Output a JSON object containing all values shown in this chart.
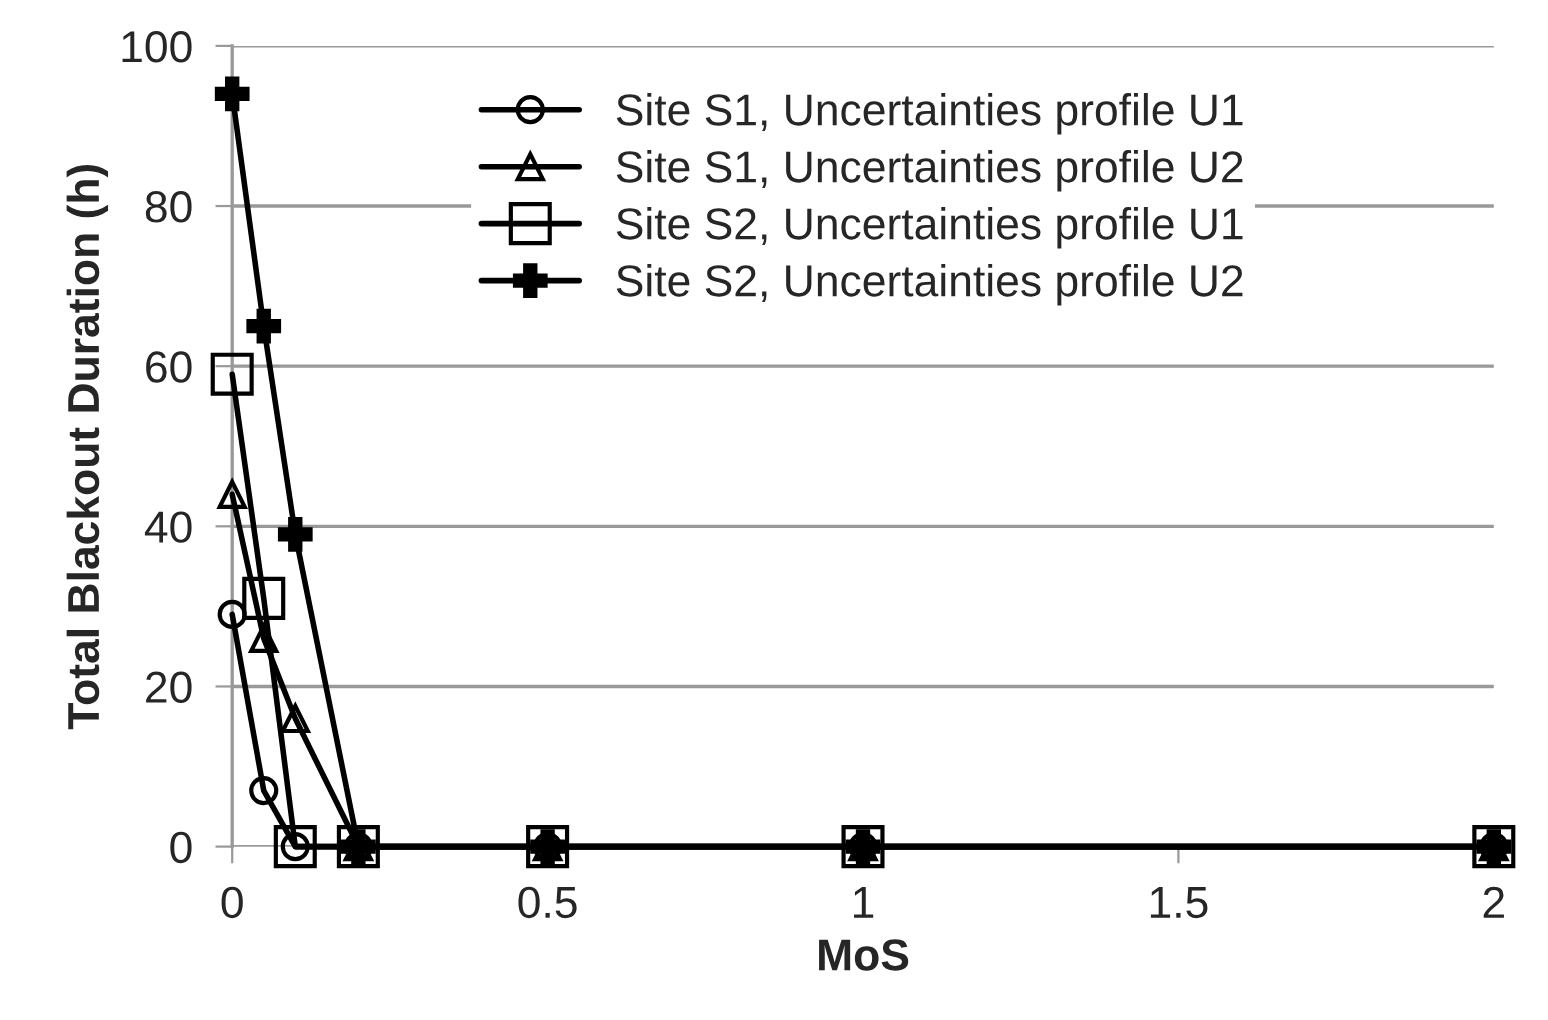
{
  "chart_data": {
    "type": "line",
    "xlabel": "MoS",
    "ylabel": "Total Blackout Duration (h)",
    "x": [
      0,
      0.05,
      0.1,
      0.2,
      0.5,
      1,
      2
    ],
    "xlim": [
      0,
      2
    ],
    "xticks": [
      0,
      0.5,
      1,
      1.5,
      2
    ],
    "ylim": [
      0,
      100
    ],
    "yticks": [
      0,
      20,
      40,
      60,
      80,
      100
    ],
    "grid": "y",
    "legend": "top",
    "line_style": "solid",
    "series": [
      {
        "name": "Site S1, Uncertainties profile U1",
        "color": "#000000",
        "marker": "circle",
        "values": [
          29,
          7,
          0,
          0,
          0,
          0,
          0
        ]
      },
      {
        "name": "Site S1, Uncertainties profile U2",
        "color": "#000000",
        "marker": "triangle",
        "values": [
          44,
          26,
          16,
          0,
          0,
          0,
          0
        ]
      },
      {
        "name": "Site S2, Uncertainties profile U1",
        "color": "#000000",
        "marker": "square",
        "values": [
          59,
          31,
          0,
          0,
          0,
          0,
          0
        ]
      },
      {
        "name": "Site S2, Uncertainties profile U2",
        "color": "#000000",
        "marker": "cross",
        "values": [
          94,
          65,
          39,
          0,
          0,
          0,
          0
        ]
      }
    ]
  }
}
